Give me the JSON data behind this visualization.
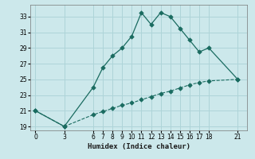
{
  "xlabel": "Humidex (Indice chaleur)",
  "bg_color": "#cce8eb",
  "grid_color": "#aed4d8",
  "line_color": "#1a6b60",
  "curve1_x": [
    0,
    3,
    6,
    7,
    8,
    9,
    10,
    11,
    12,
    13,
    14,
    15,
    16,
    17,
    18,
    21
  ],
  "curve1_y": [
    21,
    19,
    24,
    26.5,
    28,
    29,
    30.5,
    33.5,
    32,
    33.5,
    33,
    31.5,
    30,
    28.5,
    29,
    25
  ],
  "curve2_x": [
    0,
    3,
    6,
    7,
    8,
    9,
    10,
    11,
    12,
    13,
    14,
    15,
    16,
    17,
    18,
    21
  ],
  "curve2_y": [
    21,
    19,
    20.5,
    20.9,
    21.3,
    21.7,
    22.0,
    22.4,
    22.8,
    23.2,
    23.5,
    23.9,
    24.3,
    24.6,
    24.8,
    25
  ],
  "xlim": [
    -0.5,
    22
  ],
  "ylim": [
    18.5,
    34.5
  ],
  "xticks": [
    0,
    3,
    6,
    7,
    8,
    9,
    10,
    11,
    12,
    13,
    14,
    15,
    16,
    17,
    18,
    21
  ],
  "yticks": [
    19,
    21,
    23,
    25,
    27,
    29,
    31,
    33
  ],
  "xtick_fontsize": 5.5,
  "ytick_fontsize": 5.5,
  "xlabel_fontsize": 6.5
}
